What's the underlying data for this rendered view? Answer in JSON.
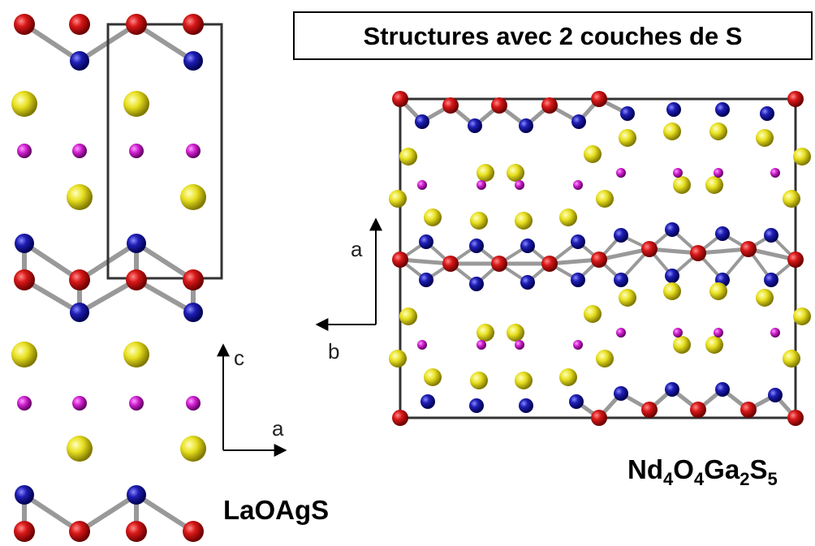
{
  "title": "Structures avec 2 couches de S",
  "structures": [
    {
      "label": "LaOAgS",
      "axes": [
        {
          "label": "c"
        },
        {
          "label": "a"
        }
      ]
    },
    {
      "formula": [
        "Nd",
        "4",
        "O",
        "4",
        "Ga",
        "2",
        "S",
        "5"
      ],
      "axes": [
        {
          "label": "a"
        },
        {
          "label": "b"
        }
      ]
    }
  ]
}
